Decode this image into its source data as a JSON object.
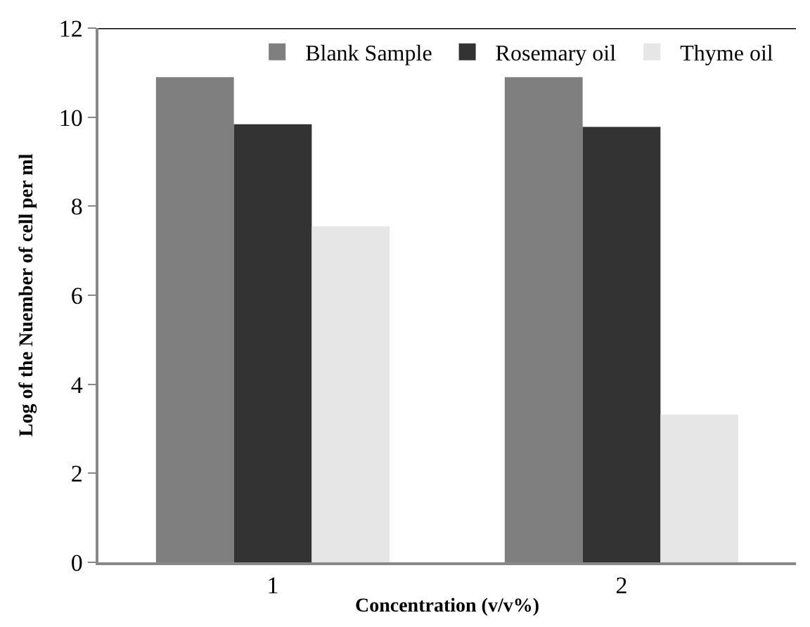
{
  "chart_data": {
    "type": "bar",
    "xlabel": "Concentration (v/v%)",
    "ylabel": "Log of the Nuember of cell per ml",
    "categories": [
      "1",
      "2"
    ],
    "series": [
      {
        "name": "Blank Sample",
        "color": "#7f7f7f",
        "values": [
          10.9,
          10.9
        ]
      },
      {
        "name": "Rosemary oil",
        "color": "#333333",
        "values": [
          9.84,
          9.78
        ]
      },
      {
        "name": "Thyme oil",
        "color": "#e6e6e6",
        "values": [
          7.55,
          3.32
        ]
      }
    ],
    "ylim": [
      0,
      12
    ],
    "yticks": [
      0,
      2,
      4,
      6,
      8,
      10,
      12
    ],
    "legend": "top"
  }
}
